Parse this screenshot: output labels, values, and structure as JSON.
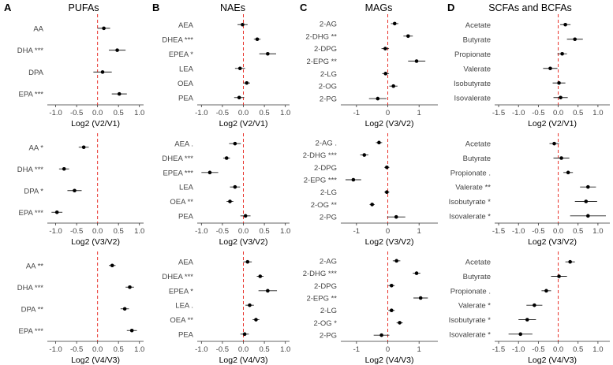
{
  "figure": {
    "columns": [
      {
        "letter": "A",
        "title": "PUFAs"
      },
      {
        "letter": "B",
        "title": "NAEs"
      },
      {
        "letter": "C",
        "title": "MAGs"
      },
      {
        "letter": "D",
        "title": "SCFAs and BCFAs"
      }
    ]
  },
  "chart_data": [
    {
      "type": "forest",
      "column": "A",
      "row": 1,
      "xlabel": "Log2 (V2/V1)",
      "xlim": [
        -1.2,
        1.1
      ],
      "xticks": [
        -1.0,
        -0.5,
        0.0,
        0.5,
        1.0
      ],
      "categories": [
        "AA",
        "DHA ***",
        "DPA",
        "EPA ***"
      ],
      "estimates": [
        0.15,
        0.47,
        0.12,
        0.52
      ],
      "ci_low": [
        0.0,
        0.27,
        -0.1,
        0.34
      ],
      "ci_high": [
        0.3,
        0.67,
        0.34,
        0.7
      ]
    },
    {
      "type": "forest",
      "column": "B",
      "row": 1,
      "xlabel": "Log2 (V2/V1)",
      "xlim": [
        -1.1,
        1.1
      ],
      "xticks": [
        -1.0,
        -0.5,
        0.0,
        0.5,
        1.0
      ],
      "categories": [
        "AEA",
        "DHEA ***",
        "EPEA *",
        "LEA",
        "OEA",
        "PEA"
      ],
      "estimates": [
        -0.02,
        0.33,
        0.58,
        -0.08,
        0.08,
        -0.1
      ],
      "ci_low": [
        -0.14,
        0.25,
        0.38,
        -0.2,
        0.0,
        -0.22
      ],
      "ci_high": [
        0.1,
        0.41,
        0.78,
        0.04,
        0.16,
        0.02
      ]
    },
    {
      "type": "forest",
      "column": "C",
      "row": 1,
      "xlabel": "Log2 (V3/V2)",
      "xlim": [
        -1.5,
        1.6
      ],
      "xticks": [
        -1,
        0,
        1
      ],
      "categories": [
        "2-AG",
        "2-DHG **",
        "2-DPG",
        "2-EPG **",
        "2-LG",
        "2-OG",
        "2-PG"
      ],
      "estimates": [
        0.22,
        0.65,
        -0.08,
        0.92,
        -0.07,
        0.18,
        -0.32
      ],
      "ci_low": [
        0.1,
        0.5,
        -0.2,
        0.65,
        -0.18,
        0.05,
        -0.6
      ],
      "ci_high": [
        0.34,
        0.8,
        0.04,
        1.2,
        0.04,
        0.31,
        -0.04
      ]
    },
    {
      "type": "forest",
      "column": "D",
      "row": 1,
      "xlabel": "Log2 (V2/V1)",
      "xlim": [
        -1.6,
        1.3
      ],
      "xticks": [
        -1.5,
        -1.0,
        -0.5,
        0.0,
        0.5,
        1.0
      ],
      "categories": [
        "Acetate",
        "Butyrate",
        "Propionate",
        "Valerate",
        "Isobutyrate",
        "Isovalerate"
      ],
      "estimates": [
        0.18,
        0.42,
        0.1,
        -0.2,
        0.02,
        0.06
      ],
      "ci_low": [
        0.05,
        0.22,
        -0.02,
        -0.38,
        -0.14,
        -0.12
      ],
      "ci_high": [
        0.31,
        0.62,
        0.22,
        -0.02,
        0.18,
        0.24
      ]
    },
    {
      "type": "forest",
      "column": "A",
      "row": 2,
      "xlabel": "Log2 (V3/V2)",
      "xlim": [
        -1.2,
        1.1
      ],
      "xticks": [
        -1.0,
        -0.5,
        0.0,
        0.5,
        1.0
      ],
      "categories": [
        "AA *",
        "DHA ***",
        "DPA *",
        "EPA ***"
      ],
      "estimates": [
        -0.33,
        -0.8,
        -0.55,
        -0.97
      ],
      "ci_low": [
        -0.45,
        -0.92,
        -0.72,
        -1.1
      ],
      "ci_high": [
        -0.21,
        -0.68,
        -0.38,
        -0.84
      ]
    },
    {
      "type": "forest",
      "column": "B",
      "row": 2,
      "xlabel": "Log2 (V3/V2)",
      "xlim": [
        -1.1,
        1.1
      ],
      "xticks": [
        -1.0,
        -0.5,
        0.0,
        0.5,
        1.0
      ],
      "categories": [
        "AEA .",
        "DHEA ***",
        "EPEA ***",
        "LEA",
        "OEA **",
        "PEA"
      ],
      "estimates": [
        -0.2,
        -0.4,
        -0.8,
        -0.2,
        -0.32,
        0.05
      ],
      "ci_low": [
        -0.34,
        -0.48,
        -1.0,
        -0.32,
        -0.4,
        -0.07
      ],
      "ci_high": [
        -0.06,
        -0.32,
        -0.6,
        -0.08,
        -0.24,
        0.17
      ]
    },
    {
      "type": "forest",
      "column": "C",
      "row": 2,
      "xlabel": "Log2 (V3/V2)",
      "xlim": [
        -1.5,
        1.6
      ],
      "xticks": [
        -1,
        0,
        1
      ],
      "categories": [
        "2-AG .",
        "2-DHG ***",
        "2-DPG",
        "2-EPG ***",
        "2-LG",
        "2-OG **",
        "2-PG"
      ],
      "estimates": [
        -0.28,
        -0.75,
        -0.03,
        -1.1,
        -0.03,
        -0.5,
        0.27
      ],
      "ci_low": [
        -0.38,
        -0.88,
        -0.11,
        -1.35,
        -0.11,
        -0.58,
        -0.02
      ],
      "ci_high": [
        -0.18,
        -0.62,
        0.05,
        -0.85,
        0.05,
        -0.42,
        0.56
      ]
    },
    {
      "type": "forest",
      "column": "D",
      "row": 2,
      "xlabel": "Log2 (V3/V2)",
      "xlim": [
        -1.6,
        1.3
      ],
      "xticks": [
        -1.5,
        -1.0,
        -0.5,
        0.0,
        0.5,
        1.0
      ],
      "categories": [
        "Acetate",
        "Butyrate",
        "Propionate .",
        "Valerate **",
        "Isobutyrate *",
        "Isovalerate *"
      ],
      "estimates": [
        -0.1,
        0.08,
        0.25,
        0.75,
        0.7,
        0.75
      ],
      "ci_low": [
        -0.22,
        -0.12,
        0.13,
        0.55,
        0.42,
        0.3
      ],
      "ci_high": [
        0.02,
        0.28,
        0.37,
        0.95,
        0.98,
        1.2
      ]
    },
    {
      "type": "forest",
      "column": "A",
      "row": 3,
      "xlabel": "Log2 (V4/V3)",
      "xlim": [
        -1.2,
        1.1
      ],
      "xticks": [
        -1.0,
        -0.5,
        0.0,
        0.5,
        1.0
      ],
      "categories": [
        "AA **",
        "DHA ***",
        "DPA **",
        "EPA ***"
      ],
      "estimates": [
        0.35,
        0.77,
        0.65,
        0.82
      ],
      "ci_low": [
        0.27,
        0.67,
        0.55,
        0.7
      ],
      "ci_high": [
        0.43,
        0.87,
        0.75,
        0.94
      ]
    },
    {
      "type": "forest",
      "column": "B",
      "row": 3,
      "xlabel": "Log2 (V4/V3)",
      "xlim": [
        -1.1,
        1.1
      ],
      "xticks": [
        -1.0,
        -0.5,
        0.0,
        0.5,
        1.0
      ],
      "categories": [
        "AEA",
        "DHEA ***",
        "EPEA *",
        "LEA .",
        "OEA **",
        "PEA"
      ],
      "estimates": [
        0.1,
        0.4,
        0.58,
        0.15,
        0.3,
        0.03
      ],
      "ci_low": [
        0.0,
        0.32,
        0.36,
        0.05,
        0.22,
        -0.07
      ],
      "ci_high": [
        0.2,
        0.48,
        0.8,
        0.25,
        0.38,
        0.13
      ]
    },
    {
      "type": "forest",
      "column": "C",
      "row": 3,
      "xlabel": "Log2 (V4/V3)",
      "xlim": [
        -1.5,
        1.6
      ],
      "xticks": [
        -1,
        0,
        1
      ],
      "categories": [
        "2-AG",
        "2-DHG ***",
        "2-DPG",
        "2-EPG **",
        "2-LG",
        "2-OG *",
        "2-PG"
      ],
      "estimates": [
        0.28,
        0.92,
        0.12,
        1.05,
        0.12,
        0.38,
        -0.2
      ],
      "ci_low": [
        0.16,
        0.8,
        0.02,
        0.82,
        0.02,
        0.28,
        -0.45
      ],
      "ci_high": [
        0.4,
        1.04,
        0.22,
        1.28,
        0.22,
        0.48,
        0.05
      ]
    },
    {
      "type": "forest",
      "column": "D",
      "row": 3,
      "xlabel": "Log2 (V4/V3)",
      "xlim": [
        -1.6,
        1.3
      ],
      "xticks": [
        -1.5,
        -1.0,
        -0.5,
        0.0,
        0.5,
        1.0
      ],
      "categories": [
        "Acetate",
        "Butyrate",
        "Propionate .",
        "Valerate *",
        "Isobutyrate *",
        "Isovalerate *"
      ],
      "estimates": [
        0.3,
        0.02,
        -0.3,
        -0.6,
        -0.78,
        -0.95
      ],
      "ci_low": [
        0.18,
        -0.18,
        -0.42,
        -0.8,
        -1.0,
        -1.25
      ],
      "ci_high": [
        0.42,
        0.22,
        -0.18,
        -0.4,
        -0.56,
        -0.65
      ]
    }
  ]
}
